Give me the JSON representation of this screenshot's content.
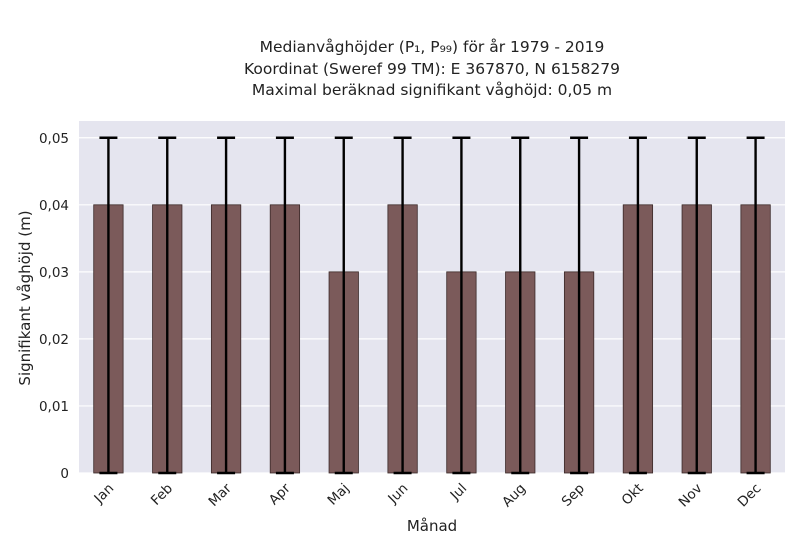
{
  "chart_data": {
    "type": "bar",
    "title_lines": [
      "Medianvåghöjder (P₁, P₉₉) för år 1979 - 2019",
      "Koordinat (Sweref 99 TM): E 367870, N 6158279",
      "Maximal beräknad signifikant våghöjd: 0,05 m"
    ],
    "xlabel": "Månad",
    "ylabel": "Signifikant våghöjd (m)",
    "categories": [
      "Jan",
      "Feb",
      "Mar",
      "Apr",
      "Maj",
      "Jun",
      "Jul",
      "Aug",
      "Sep",
      "Okt",
      "Nov",
      "Dec"
    ],
    "values": [
      0.04,
      0.04,
      0.04,
      0.04,
      0.03,
      0.04,
      0.03,
      0.03,
      0.03,
      0.04,
      0.04,
      0.04
    ],
    "error_low": [
      0,
      0,
      0,
      0,
      0,
      0,
      0,
      0,
      0,
      0,
      0,
      0
    ],
    "error_high": [
      0.05,
      0.05,
      0.05,
      0.05,
      0.05,
      0.05,
      0.05,
      0.05,
      0.05,
      0.05,
      0.05,
      0.05
    ],
    "ylim": [
      0,
      0.0525
    ],
    "yticks": [
      0,
      0.01,
      0.02,
      0.03,
      0.04,
      0.05
    ],
    "ytick_labels": [
      "0",
      "0,01",
      "0,02",
      "0,03",
      "0,04",
      "0,05"
    ],
    "grid": true,
    "colors": {
      "bar": "#7b5a5a",
      "bar_edge": "#3a2828",
      "errorbar": "#000000",
      "plot_background": "#e5e5ef",
      "grid": "#ffffff"
    }
  }
}
